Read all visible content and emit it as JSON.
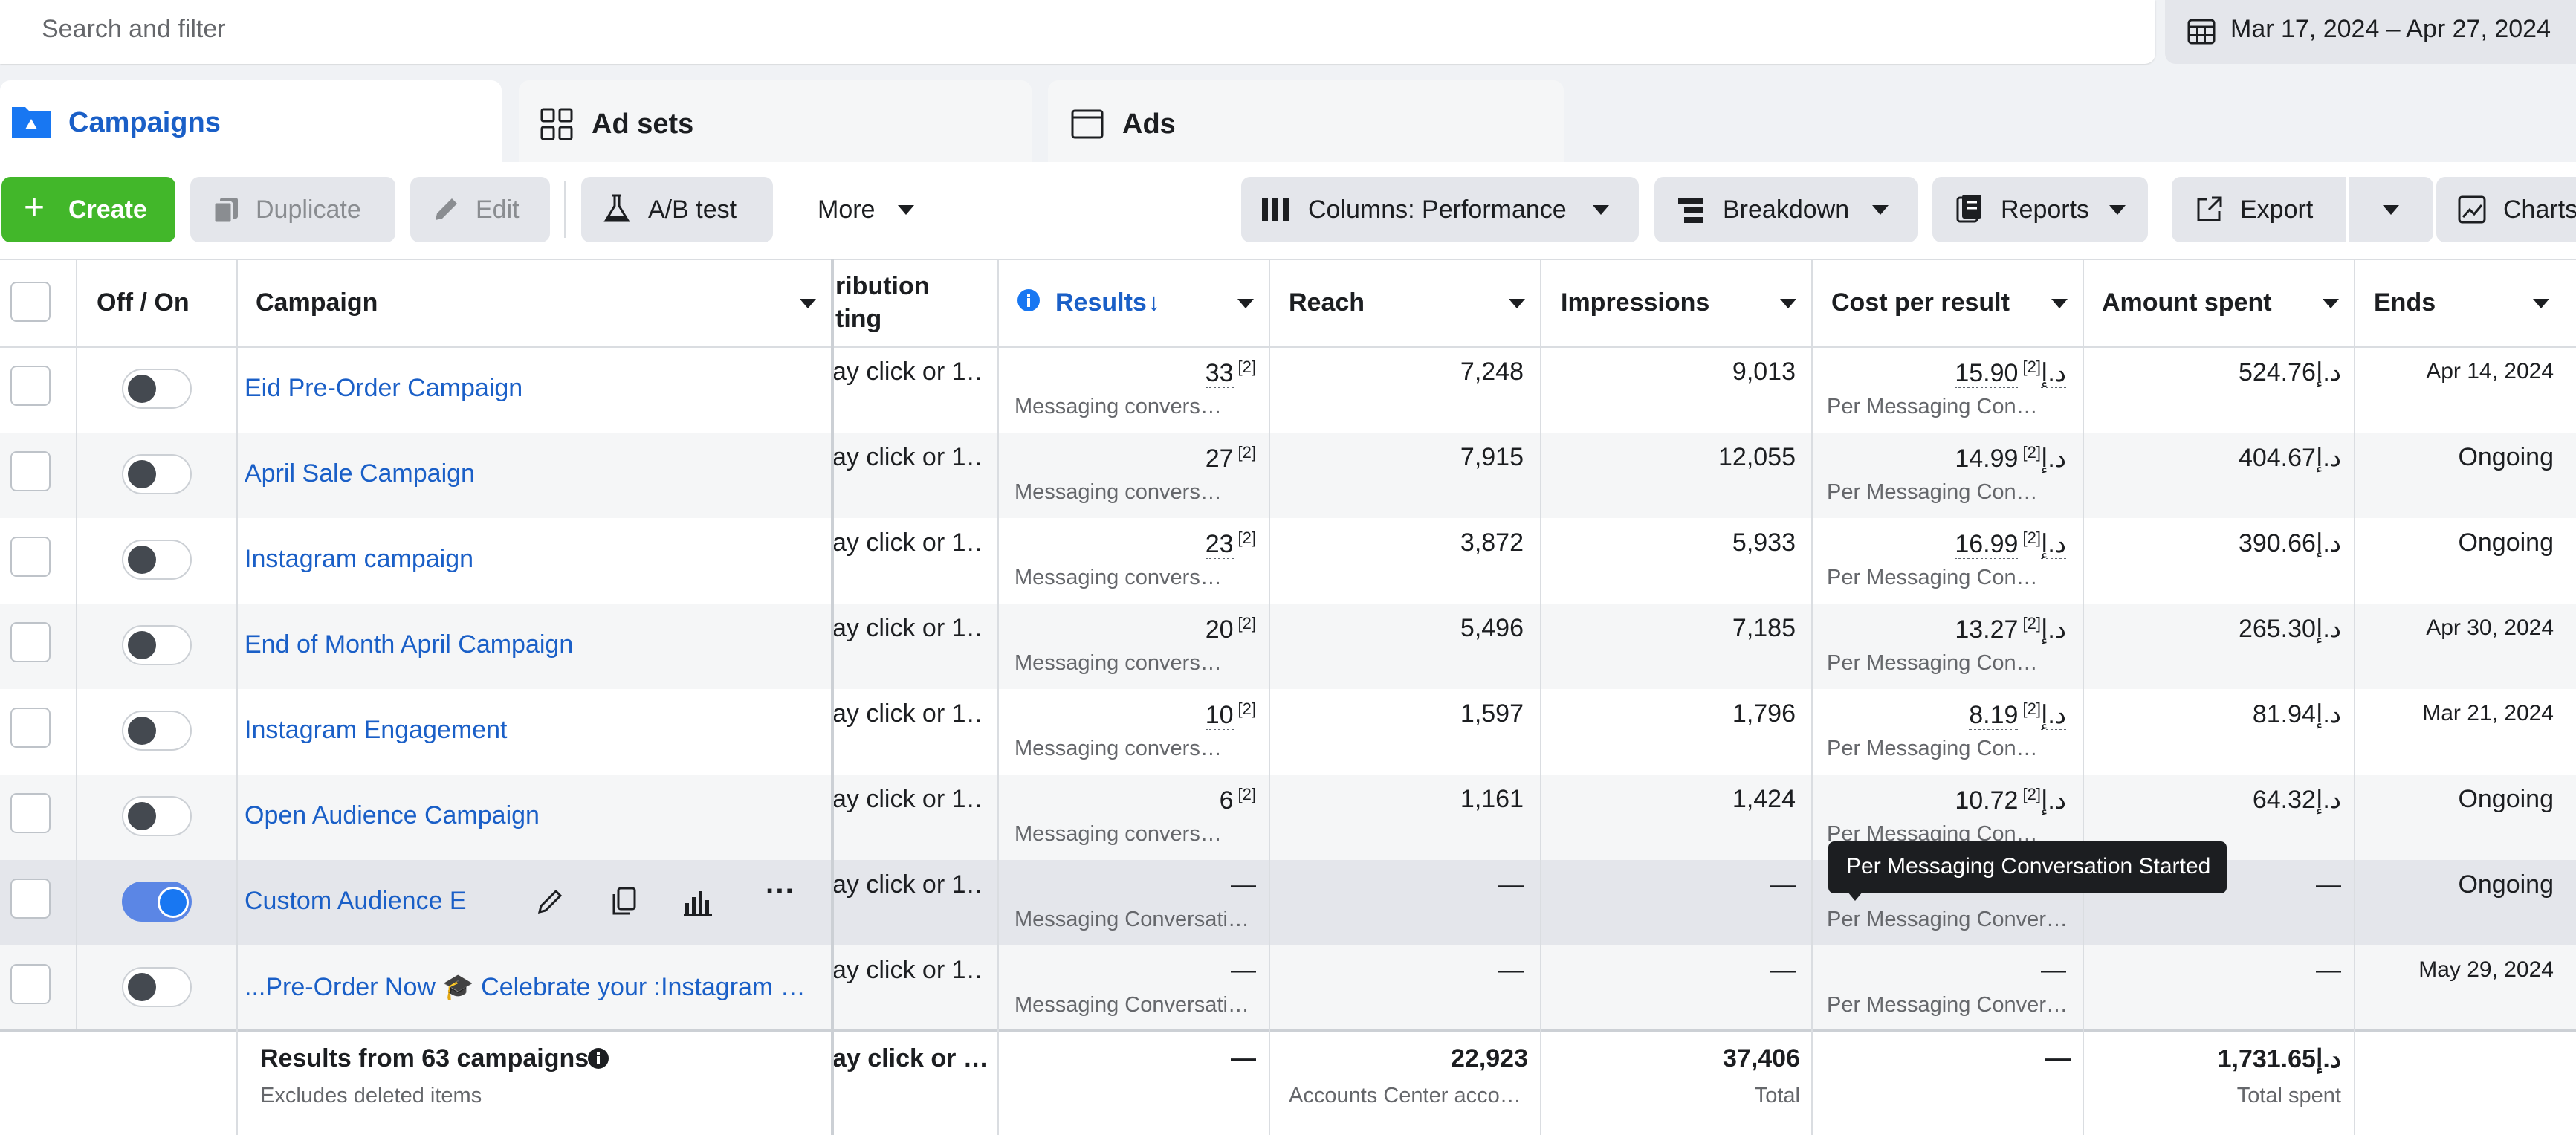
{
  "search": {
    "placeholder": "Search and filter"
  },
  "date_range": "Mar 17, 2024 – Apr 27, 2024",
  "tabs": [
    {
      "label": "Campaigns"
    },
    {
      "label": "Ad sets"
    },
    {
      "label": "Ads"
    }
  ],
  "toolbar": {
    "create": "Create",
    "duplicate": "Duplicate",
    "edit": "Edit",
    "ab_test": "A/B test",
    "more": "More",
    "columns": "Columns: Performance",
    "breakdown": "Breakdown",
    "reports": "Reports",
    "export": "Export",
    "charts": "Charts"
  },
  "headers": {
    "off_on": "Off / On",
    "campaign": "Campaign",
    "attribution_line1": "ribution",
    "attribution_line2": "ting",
    "results": "Results",
    "results_sort": "↓",
    "reach": "Reach",
    "impressions": "Impressions",
    "cost_per_result": "Cost per result",
    "amount_spent": "Amount spent",
    "ends": "Ends"
  },
  "rows": [
    {
      "name": "Eid Pre-Order Campaign",
      "attribution": "ay click or 1…",
      "results": "33",
      "results_sup": "[2]",
      "results_sub": "Messaging convers…",
      "reach": "7,248",
      "impressions": "9,013",
      "cost": "15.90د.إ",
      "cost_sup": "[2]",
      "cost_sub": "Per Messaging Con…",
      "spent": "524.76د.إ",
      "ends": "Apr 14, 2024",
      "on": false
    },
    {
      "name": "April Sale Campaign",
      "attribution": "ay click or 1…",
      "results": "27",
      "results_sup": "[2]",
      "results_sub": "Messaging convers…",
      "reach": "7,915",
      "impressions": "12,055",
      "cost": "14.99د.إ",
      "cost_sup": "[2]",
      "cost_sub": "Per Messaging Con…",
      "spent": "404.67د.إ",
      "ends": "Ongoing",
      "on": false
    },
    {
      "name": "Instagram campaign",
      "attribution": "ay click or 1…",
      "results": "23",
      "results_sup": "[2]",
      "results_sub": "Messaging convers…",
      "reach": "3,872",
      "impressions": "5,933",
      "cost": "16.99د.إ",
      "cost_sup": "[2]",
      "cost_sub": "Per Messaging Con…",
      "spent": "390.66د.إ",
      "ends": "Ongoing",
      "on": false
    },
    {
      "name": "End of Month April Campaign",
      "attribution": "ay click or 1…",
      "results": "20",
      "results_sup": "[2]",
      "results_sub": "Messaging convers…",
      "reach": "5,496",
      "impressions": "7,185",
      "cost": "13.27د.إ",
      "cost_sup": "[2]",
      "cost_sub": "Per Messaging Con…",
      "spent": "265.30د.إ",
      "ends": "Apr 30, 2024",
      "on": false
    },
    {
      "name": "Instagram Engagement",
      "attribution": "ay click or 1…",
      "results": "10",
      "results_sup": "[2]",
      "results_sub": "Messaging convers…",
      "reach": "1,597",
      "impressions": "1,796",
      "cost": "8.19د.إ",
      "cost_sup": "[2]",
      "cost_sub": "Per Messaging Con…",
      "spent": "81.94د.إ",
      "ends": "Mar 21, 2024",
      "on": false
    },
    {
      "name": "Open Audience Campaign",
      "attribution": "ay click or 1…",
      "results": "6",
      "results_sup": "[2]",
      "results_sub": "Messaging convers…",
      "reach": "1,161",
      "impressions": "1,424",
      "cost": "10.72د.إ",
      "cost_sup": "[2]",
      "cost_sub": "Per Messaging Con…",
      "spent": "64.32د.إ",
      "ends": "Ongoing",
      "on": false
    },
    {
      "name": "Custom Audience En…",
      "attribution": "ay click or 1…",
      "results": "—",
      "results_sup": "",
      "results_sub": "Messaging Conversati…",
      "reach": "—",
      "impressions": "—",
      "cost": "",
      "cost_sup": "",
      "cost_sub": "Per Messaging Conver…",
      "spent": "—",
      "ends": "Ongoing",
      "on": true
    },
    {
      "name": "...Pre-Order Now 🎓 Celebrate your :Instagram …",
      "attribution": "ay click or 1…",
      "results": "—",
      "results_sup": "",
      "results_sub": "Messaging Conversati…",
      "reach": "—",
      "impressions": "—",
      "cost": "—",
      "cost_sup": "",
      "cost_sub": "Per Messaging Conver…",
      "spent": "—",
      "ends": "May 29, 2024",
      "on": false
    }
  ],
  "footer": {
    "title": "Results from 63 campaigns",
    "subtitle": "Excludes deleted items",
    "attribution": "ay click or …",
    "results": "—",
    "reach": "22,923",
    "reach_sub": "Accounts Center acco…",
    "impressions": "37,406",
    "impressions_sub": "Total",
    "cost": "—",
    "spent": "1,731.65د.إ",
    "spent_sub": "Total spent"
  },
  "tooltip": "Per Messaging Conversation Started",
  "colors": {
    "create_green": "#42b72a",
    "link_blue": "#1a5fc7",
    "brand_blue": "#1877f2"
  }
}
